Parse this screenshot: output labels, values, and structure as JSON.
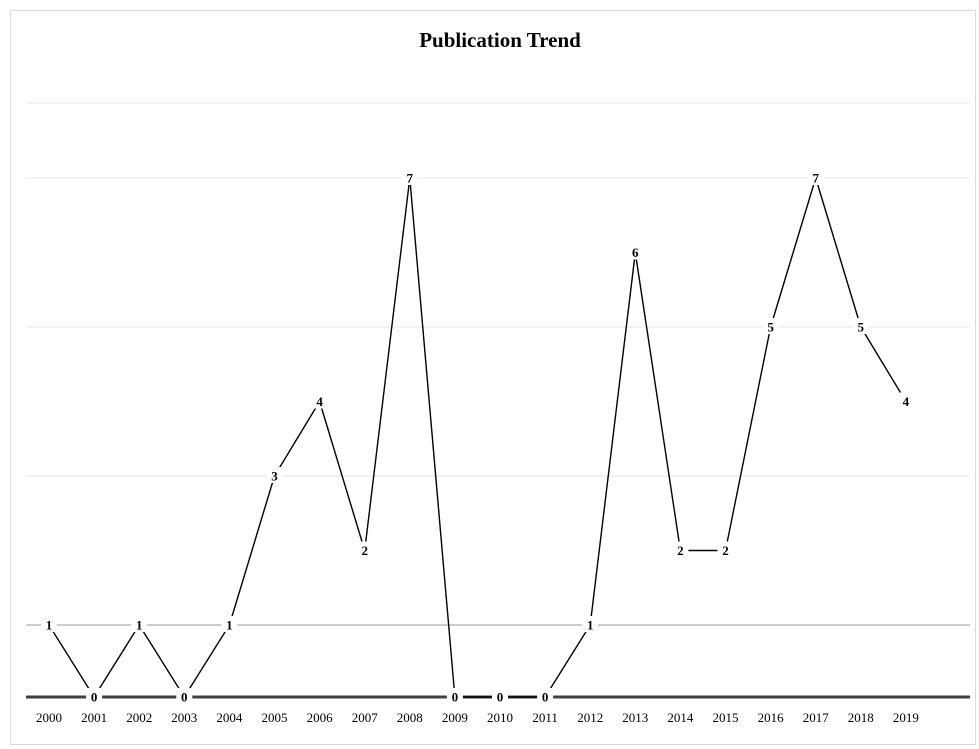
{
  "chart_data": {
    "type": "line",
    "title": "Publication Trend",
    "xlabel": "",
    "ylabel": "",
    "ylim": [
      0,
      7
    ],
    "grid": true,
    "legend": "none",
    "categories": [
      "2000",
      "2001",
      "2002",
      "2003",
      "2004",
      "2005",
      "2006",
      "2007",
      "2008",
      "2009",
      "2010",
      "2011",
      "2012",
      "2013",
      "2014",
      "2015",
      "2016",
      "2017",
      "2018",
      "2019"
    ],
    "series": [
      {
        "values": [
          1,
          0,
          1,
          0,
          1,
          3,
          4,
          2,
          7,
          0,
          0,
          0,
          1,
          6,
          2,
          2,
          5,
          7,
          5,
          4
        ]
      }
    ],
    "colors": {
      "line": "#000000",
      "grid": "#e6e6e6",
      "axis": "#404040"
    }
  }
}
